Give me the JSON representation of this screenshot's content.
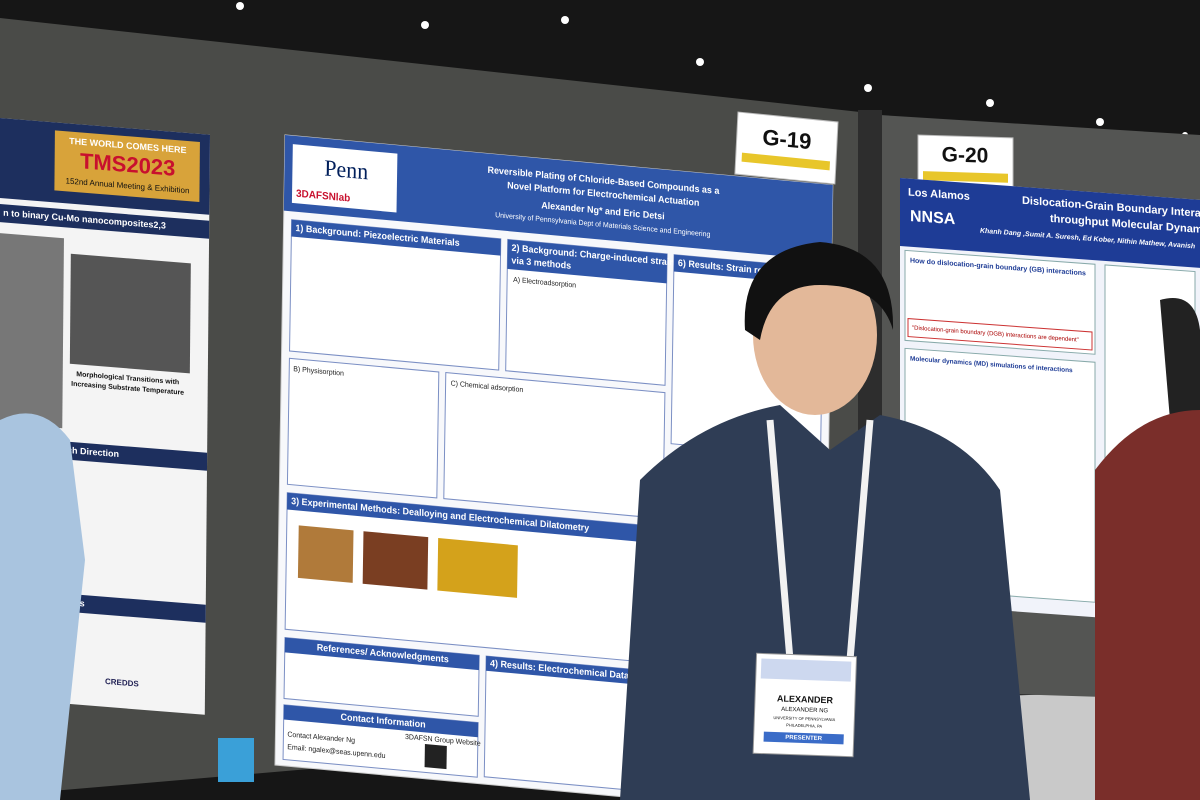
{
  "boards": [
    {
      "label": "G-19"
    },
    {
      "label": "G-20"
    }
  ],
  "left_poster": {
    "tagline": "THE WORLD COMES HERE",
    "conference": "TMS2023",
    "meeting": "152nd Annual Meeting & Exhibition",
    "heading": "n to binary Cu-Mo nanocomposites2,3",
    "caption_1": "Morphological Transitions with",
    "caption_2": "Increasing Substrate Temperature",
    "section_2": "Research Direction",
    "section_3": "rences",
    "sponsor": "CREDDS"
  },
  "center_poster": {
    "brand": "Penn",
    "lab": "3DAFSNlab",
    "title": [
      "Reversible Plating of Chloride-Based Compounds as a",
      "Novel Platform for Electrochemical Actuation"
    ],
    "authors": "Alexander Ng* and Eric Detsi",
    "affiliation": "University of Pennsylvania Dept of Materials Science and Engineering",
    "sections": [
      "1) Background: Piezoelectric Materials",
      "2) Background: Charge-induced strain",
      "via 3 methods",
      "A) Electroadsorption",
      "6) Results: Strain rela",
      "B) Physisorption",
      "C) Chemical adsorption",
      "3) Experimental Methods: Dealloying and Electrochemical Dilatometry",
      "References/ Acknowledgments",
      "4) Results: Electrochemical Data"
    ],
    "contact": {
      "heading": "Contact Information",
      "name": "Contact Alexander Ng",
      "email": "Email: ngalex@seas.upenn.edu",
      "website": "3DAFSN Group Website"
    }
  },
  "right_poster": {
    "org": "Los Alamos",
    "short": "NNSA",
    "title": [
      "Dislocation-Grain Boundary Interactio",
      "throughput Molecular Dynamics S"
    ],
    "authors": "Khanh Dang ,Sumit A. Suresh, Ed Kober, Nithin Mathew, Avanish",
    "question": "How do dislocation-grain boundary (GB) interactions",
    "quote": "\"Dislocation-grain boundary (DGB) interactions are dependent\"",
    "md": "Molecular dynamics (MD) simulations of interactions"
  },
  "badge": {
    "first_name": "ALEXANDER",
    "full_name": "ALEXANDER NG",
    "org": "UNIVERSITY OF PENNSYLVANIA",
    "city": "PHILADELPHIA, PA",
    "role": "PRESENTER"
  }
}
